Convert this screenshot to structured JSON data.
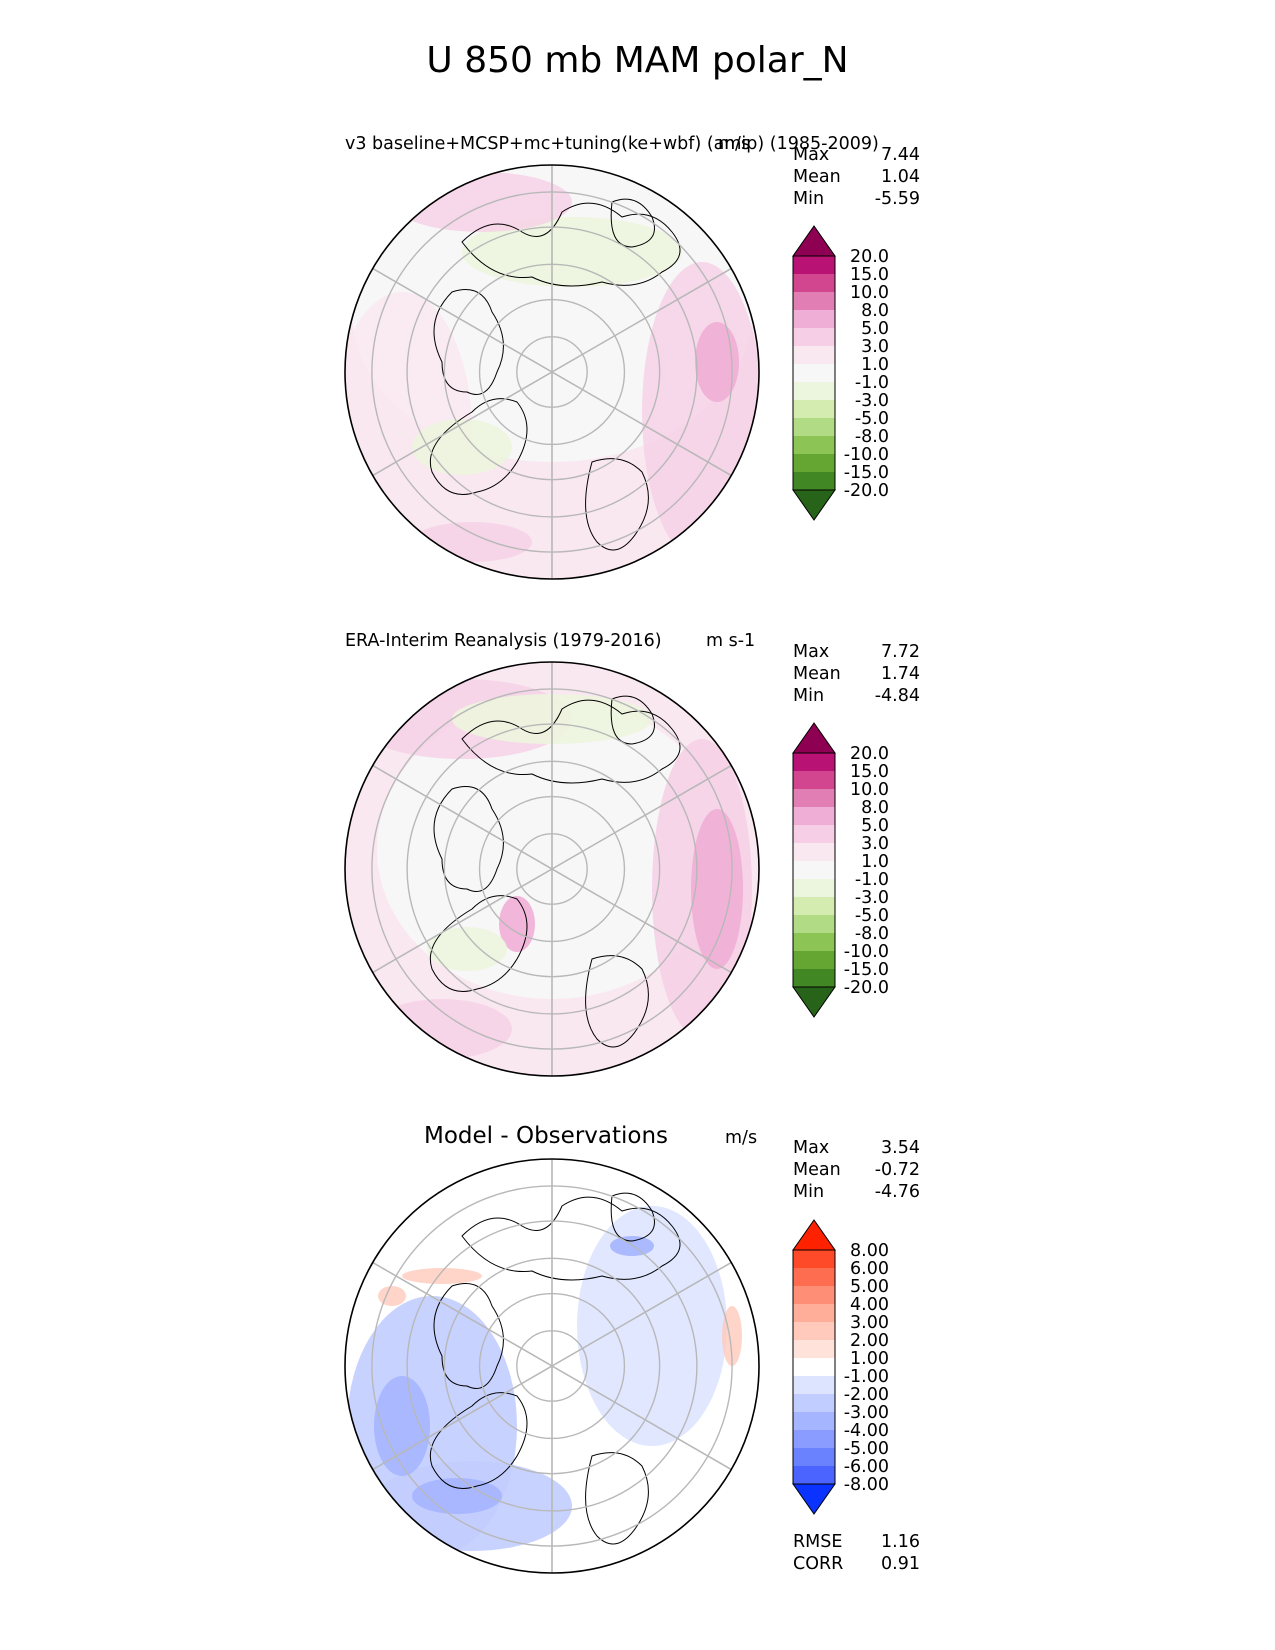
{
  "figure_title": "U 850 mb MAM polar_N",
  "chart_data": [
    {
      "type": "heatmap",
      "projection": "north-polar-stereographic",
      "title": "v3 baseline+MCSP+mc+tuning(ke+wbf) (amip) (1985-2009)",
      "units": "m/s",
      "stats": {
        "max_label": "Max",
        "max": "7.44",
        "mean_label": "Mean",
        "mean": "1.04",
        "min_label": "Min",
        "min": "-5.59"
      },
      "colorbar": {
        "levels": [
          "20.0",
          "15.0",
          "10.0",
          "8.0",
          "5.0",
          "3.0",
          "1.0",
          "-1.0",
          "-3.0",
          "-5.0",
          "-8.0",
          "-10.0",
          "-15.0",
          "-20.0"
        ],
        "colors": [
          "#8e0152",
          "#b81274",
          "#d2468f",
          "#e17fb5",
          "#efaed5",
          "#f6cfe6",
          "#fae8f1",
          "#f7f7f7",
          "#ecf5de",
          "#d4ecb0",
          "#b2db85",
          "#8cc456",
          "#65a633",
          "#418825",
          "#276419"
        ]
      }
    },
    {
      "type": "heatmap",
      "projection": "north-polar-stereographic",
      "title": "ERA-Interim Reanalysis (1979-2016)",
      "units": "m s-1",
      "stats": {
        "max_label": "Max",
        "max": "7.72",
        "mean_label": "Mean",
        "mean": "1.74",
        "min_label": "Min",
        "min": "-4.84"
      },
      "colorbar": {
        "levels": [
          "20.0",
          "15.0",
          "10.0",
          "8.0",
          "5.0",
          "3.0",
          "1.0",
          "-1.0",
          "-3.0",
          "-5.0",
          "-8.0",
          "-10.0",
          "-15.0",
          "-20.0"
        ],
        "colors": [
          "#8e0152",
          "#b81274",
          "#d2468f",
          "#e17fb5",
          "#efaed5",
          "#f6cfe6",
          "#fae8f1",
          "#f7f7f7",
          "#ecf5de",
          "#d4ecb0",
          "#b2db85",
          "#8cc456",
          "#65a633",
          "#418825",
          "#276419"
        ]
      }
    },
    {
      "type": "heatmap",
      "projection": "north-polar-stereographic",
      "title": "Model - Observations",
      "units": "m/s",
      "stats": {
        "max_label": "Max",
        "max": "3.54",
        "mean_label": "Mean",
        "mean": "-0.72",
        "min_label": "Min",
        "min": "-4.76"
      },
      "colorbar": {
        "levels": [
          "8.00",
          "6.00",
          "5.00",
          "4.00",
          "3.00",
          "2.00",
          "1.00",
          "-1.00",
          "-2.00",
          "-3.00",
          "-4.00",
          "-5.00",
          "-6.00",
          "-8.00"
        ],
        "colors": [
          "#ff2200",
          "#ff4a2a",
          "#ff6d50",
          "#ff8e76",
          "#ffae9a",
          "#ffcabb",
          "#ffe3da",
          "#ffffff",
          "#dde4ff",
          "#c2cdff",
          "#a5b5ff",
          "#8a9cff",
          "#6b82ff",
          "#4b63ff",
          "#0a33ff"
        ]
      },
      "error_stats": {
        "rmse_label": "RMSE",
        "rmse": "1.16",
        "corr_label": "CORR",
        "corr": "0.91"
      }
    }
  ]
}
